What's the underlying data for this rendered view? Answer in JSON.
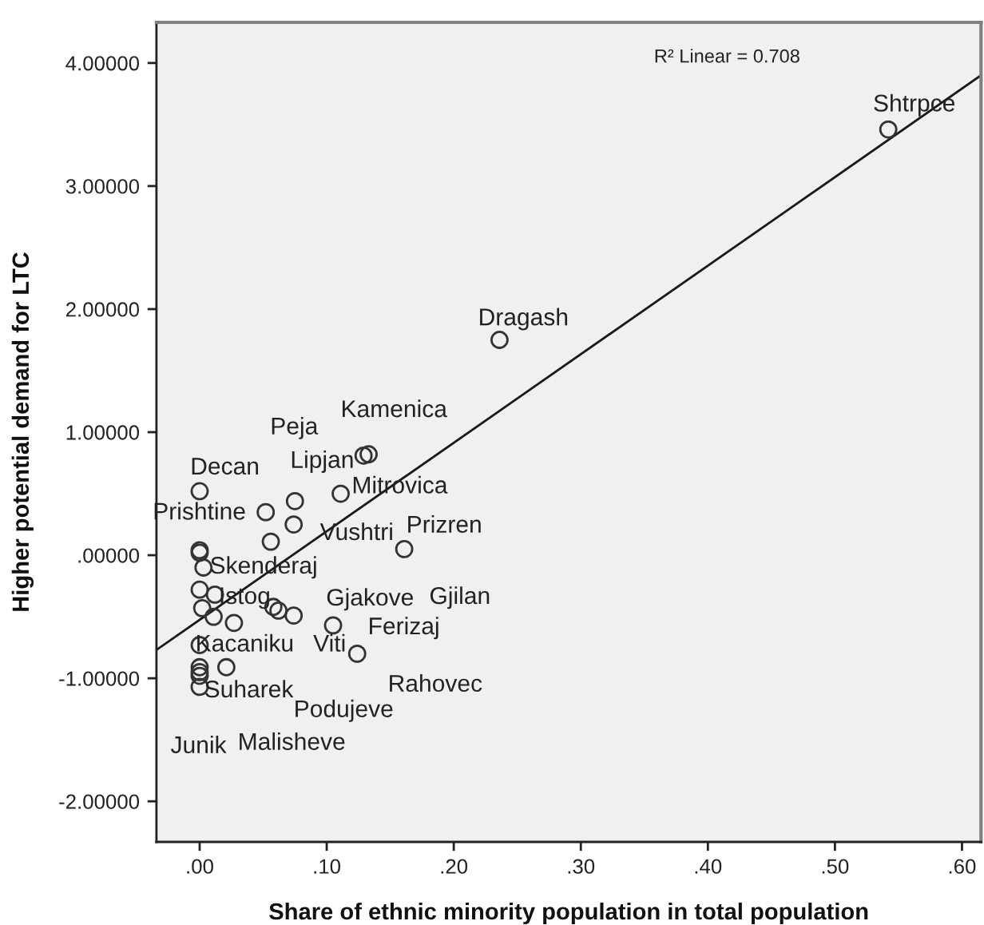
{
  "chart_data": {
    "type": "scatter",
    "xlabel": "Share of ethnic minority population in total population",
    "ylabel": "Higher potential demand for LTC",
    "marker": "circle",
    "xlim": [
      -0.034,
      0.615
    ],
    "ylim": [
      -2.33,
      4.33
    ],
    "xticks": [
      {
        "value": 0,
        "label": ".00"
      },
      {
        "value": 0.1,
        "label": ".10"
      },
      {
        "value": 0.2,
        "label": ".20"
      },
      {
        "value": 0.3,
        "label": ".30"
      },
      {
        "value": 0.4,
        "label": ".40"
      },
      {
        "value": 0.5,
        "label": ".50"
      },
      {
        "value": 0.6,
        "label": ".60"
      }
    ],
    "yticks": [
      {
        "value": -2,
        "label": "-2.00000"
      },
      {
        "value": -1,
        "label": "-1.00000"
      },
      {
        "value": 0,
        "label": ".00000"
      },
      {
        "value": 1,
        "label": "1.00000"
      },
      {
        "value": 2,
        "label": "2.00000"
      },
      {
        "value": 3,
        "label": "3.00000"
      },
      {
        "value": 4,
        "label": "4.00000"
      }
    ],
    "series": [
      {
        "color": "#333333",
        "x": [
          0.0,
          0.052,
          0.075,
          0.074,
          0.056,
          0.111,
          0.129,
          0.133,
          0.161,
          0.0,
          0.0,
          0.003,
          0.0,
          0.012,
          0.002,
          0.011,
          0.027,
          0.058,
          0.062,
          0.074,
          0.105,
          0.124,
          0.0,
          0.0,
          0.0,
          0.0,
          0.0,
          0.021,
          0.236,
          0.542
        ],
        "values": [
          0.52,
          0.35,
          0.44,
          0.25,
          0.11,
          0.5,
          0.81,
          0.82,
          0.05,
          0.04,
          0.02,
          -0.1,
          -0.28,
          -0.32,
          -0.43,
          -0.5,
          -0.55,
          -0.42,
          -0.45,
          -0.49,
          -0.57,
          -0.8,
          -0.73,
          -0.91,
          -0.95,
          -0.98,
          -1.07,
          -0.91,
          1.75,
          3.46
        ]
      },
      {
        "type": "line",
        "color": "#1a1a1a",
        "marker": "none",
        "line_style": "solid",
        "x": [
          -0.034,
          0.615
        ],
        "values": [
          -0.77,
          3.9
        ]
      }
    ],
    "annotations": [
      "R² Linear = 0.708",
      "Shtrpce",
      "Dragash",
      "Kamenica",
      "Peja",
      "Lipjan",
      "Decan",
      "Mitrovica",
      "Prishtine",
      "Vushtri",
      "Prizren",
      "Skenderaj",
      "Istog",
      "Gjakove",
      "Gjilan",
      "Ferizaj",
      "Kacaniku",
      "Viti",
      "Rahovec",
      "Suharek",
      "Podujeve",
      "Junik",
      "Malisheve"
    ]
  }
}
